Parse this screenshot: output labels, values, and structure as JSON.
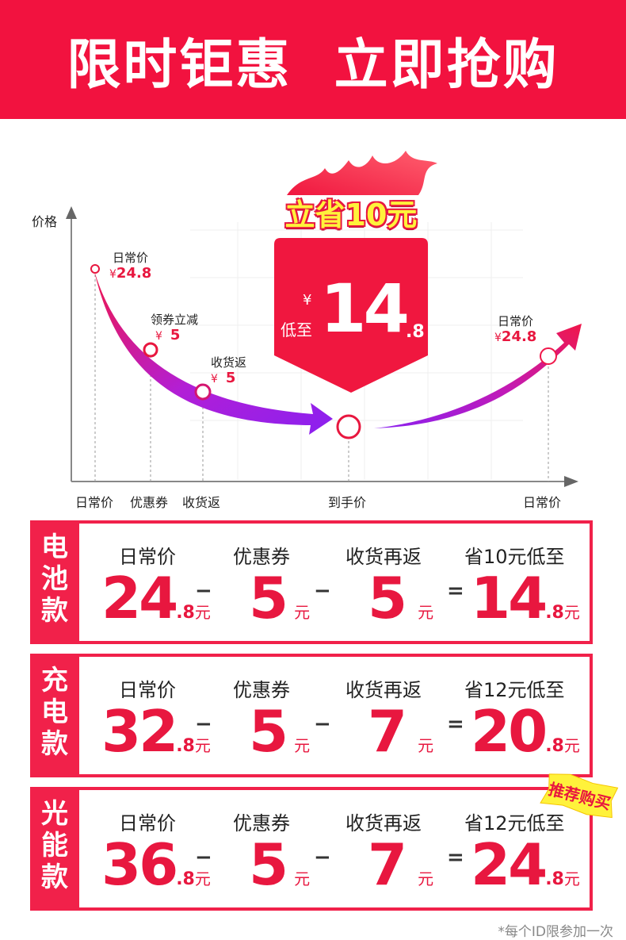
{
  "header": {
    "title": "限时钜惠  立即抢购"
  },
  "chart": {
    "y_axis_label": "价格",
    "x_labels": [
      "日常价",
      "优惠券",
      "收货返",
      "到手价",
      "日常价"
    ],
    "points": [
      {
        "title": "日常价",
        "currency": "¥",
        "value": "24.8"
      },
      {
        "title": "领券立减",
        "currency": "¥",
        "value": "5"
      },
      {
        "title": "收货返",
        "currency": "¥",
        "value": "5"
      }
    ],
    "right_point": {
      "title": "日常价",
      "currency": "¥",
      "value": "24.8"
    },
    "save_tag": "立省10元",
    "low_price": {
      "currency": "¥",
      "prefix": "低至",
      "int": "14",
      "dec": ".8"
    },
    "colors": {
      "accent": "#e8173f",
      "header": "#f2123f",
      "arrow_purple": "#9b1ee8"
    }
  },
  "rows": [
    {
      "name": "电池款",
      "labels": [
        "日常价",
        "优惠券",
        "收货再返",
        "省10元低至"
      ],
      "regular": {
        "int": "24",
        "dec": ".8",
        "unit": "元"
      },
      "coupon": {
        "int": "5",
        "unit": "元"
      },
      "rebate": {
        "int": "5",
        "unit": "元"
      },
      "final": {
        "int": "14",
        "dec": ".8",
        "unit": "元"
      }
    },
    {
      "name": "充电款",
      "labels": [
        "日常价",
        "优惠券",
        "收货再返",
        "省12元低至"
      ],
      "regular": {
        "int": "32",
        "dec": ".8",
        "unit": "元"
      },
      "coupon": {
        "int": "5",
        "unit": "元"
      },
      "rebate": {
        "int": "7",
        "unit": "元"
      },
      "final": {
        "int": "20",
        "dec": ".8",
        "unit": "元"
      }
    },
    {
      "name": "光能款",
      "labels": [
        "日常价",
        "优惠券",
        "收货再返",
        "省12元低至"
      ],
      "regular": {
        "int": "36",
        "dec": ".8",
        "unit": "元"
      },
      "coupon": {
        "int": "5",
        "unit": "元"
      },
      "rebate": {
        "int": "7",
        "unit": "元"
      },
      "final": {
        "int": "24",
        "dec": ".8",
        "unit": "元"
      }
    }
  ],
  "operators": {
    "minus": "−",
    "equals": "="
  },
  "recommend_tag": "推荐购买",
  "footnote": "*每个ID限参加一次"
}
